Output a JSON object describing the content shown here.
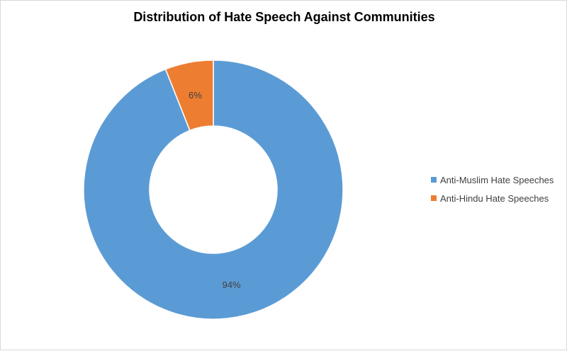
{
  "chart_data": {
    "type": "pie",
    "subtype": "doughnut",
    "title": "Distribution of Hate Speech Against Communities",
    "categories": [
      "Anti-Muslim Hate Speeches",
      "Anti-Hindu Hate Speeches"
    ],
    "values": [
      94,
      6
    ],
    "data_labels": [
      "94%",
      "6%"
    ],
    "colors": [
      "#5b9bd5",
      "#ed7d31"
    ],
    "legend_position": "right"
  }
}
